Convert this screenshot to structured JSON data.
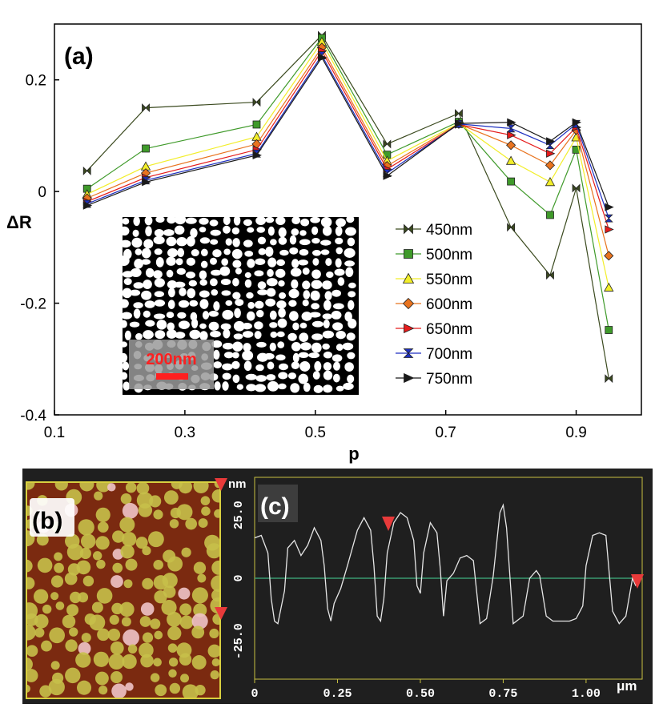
{
  "chart_data": [
    {
      "panel": "(a)",
      "type": "line",
      "xlabel": "p",
      "ylabel": "ΔR",
      "xlim": [
        0.1,
        1.0
      ],
      "ylim": [
        -0.4,
        0.3
      ],
      "x_ticks": [
        "0.1",
        "0.3",
        "0.5",
        "0.7",
        "0.9"
      ],
      "y_ticks": [
        "-0.4",
        "-0.2",
        "0",
        "0.2"
      ],
      "x": [
        0.15,
        0.24,
        0.41,
        0.51,
        0.61,
        0.72,
        0.8,
        0.86,
        0.9,
        0.95
      ],
      "series": [
        {
          "name": "450nm",
          "color": "#3b4a1f",
          "marker": "bowtie",
          "values": [
            0.037,
            0.15,
            0.16,
            0.28,
            0.085,
            0.14,
            -0.064,
            -0.15,
            0.006,
            -0.335
          ]
        },
        {
          "name": "500nm",
          "color": "#3f9a2a",
          "marker": "square",
          "values": [
            0.005,
            0.077,
            0.12,
            0.275,
            0.066,
            0.125,
            0.018,
            -0.042,
            0.075,
            -0.248
          ]
        },
        {
          "name": "550nm",
          "color": "#f2ee2a",
          "marker": "triangle-up",
          "values": [
            -0.005,
            0.045,
            0.098,
            0.268,
            0.055,
            0.122,
            0.055,
            0.017,
            0.097,
            -0.172
          ]
        },
        {
          "name": "600nm",
          "color": "#e8731e",
          "marker": "diamond",
          "values": [
            -0.012,
            0.033,
            0.085,
            0.258,
            0.046,
            0.121,
            0.083,
            0.047,
            0.11,
            -0.115
          ]
        },
        {
          "name": "650nm",
          "color": "#e51b1b",
          "marker": "triangle-right",
          "values": [
            -0.018,
            0.025,
            0.075,
            0.252,
            0.04,
            0.12,
            0.101,
            0.068,
            0.115,
            -0.068
          ]
        },
        {
          "name": "700nm",
          "color": "#1d2fc0",
          "marker": "hourglass",
          "values": [
            -0.022,
            0.02,
            0.068,
            0.244,
            0.033,
            0.121,
            0.113,
            0.083,
            0.121,
            -0.048
          ]
        },
        {
          "name": "750nm",
          "color": "#1a1a1a",
          "marker": "triangle-right",
          "values": [
            -0.025,
            0.017,
            0.065,
            0.24,
            0.028,
            0.122,
            0.124,
            0.09,
            0.124,
            -0.028
          ]
        }
      ],
      "inset_scale_label": "200nm"
    },
    {
      "panel": "(c)",
      "type": "line",
      "xlabel": "μm",
      "ylabel": "nm",
      "xlim": [
        0,
        1.15
      ],
      "ylim": [
        -40,
        40
      ],
      "x_ticks": [
        "0",
        "0.25",
        "0.50",
        "0.75",
        "1.00"
      ],
      "y_ticks": [
        "25.0",
        "0",
        "-25.0"
      ],
      "x": [
        0,
        0.02,
        0.04,
        0.05,
        0.06,
        0.07,
        0.09,
        0.1,
        0.12,
        0.14,
        0.16,
        0.18,
        0.2,
        0.21,
        0.22,
        0.23,
        0.24,
        0.26,
        0.28,
        0.31,
        0.33,
        0.35,
        0.36,
        0.37,
        0.38,
        0.39,
        0.4,
        0.42,
        0.44,
        0.46,
        0.48,
        0.49,
        0.5,
        0.51,
        0.53,
        0.55,
        0.56,
        0.57,
        0.58,
        0.6,
        0.62,
        0.64,
        0.66,
        0.68,
        0.7,
        0.72,
        0.74,
        0.75,
        0.76,
        0.78,
        0.8,
        0.81,
        0.83,
        0.85,
        0.86,
        0.88,
        0.9,
        0.93,
        0.95,
        0.97,
        0.99,
        1.0,
        1.02,
        1.04,
        1.06,
        1.08,
        1.1,
        1.12,
        1.14,
        1.15
      ],
      "values": [
        16,
        17,
        10,
        -8,
        -17,
        -18,
        -5,
        12,
        15,
        9,
        13,
        20,
        15,
        5,
        -12,
        -17,
        -10,
        -4,
        5,
        19,
        24,
        19,
        5,
        -15,
        -17,
        -8,
        10,
        22,
        26,
        24,
        15,
        -3,
        -6,
        10,
        22,
        18,
        4,
        -15,
        -1,
        2,
        8,
        9,
        7,
        -18,
        -16,
        1,
        26,
        29,
        20,
        -18,
        -16,
        -15,
        0,
        3,
        1,
        -15,
        -17,
        -17,
        -17,
        -16,
        -11,
        5,
        17,
        18,
        17,
        -13,
        -18,
        -15,
        0,
        -3
      ],
      "zero_line_color": "#3a9a70",
      "profile_color": "#e6e6e6",
      "background": "#1f1f1f"
    }
  ],
  "labels": {
    "panel_a": "(a)",
    "panel_b": "(b)",
    "panel_c": "(c)",
    "unit_nm": "nm",
    "unit_um": "μm"
  },
  "colors": {
    "afm_background": "#7b2a10",
    "afm_grain": "#c7c04a",
    "afm_highlight": "#f0c4c8",
    "marker_red": "#e83a3a"
  }
}
